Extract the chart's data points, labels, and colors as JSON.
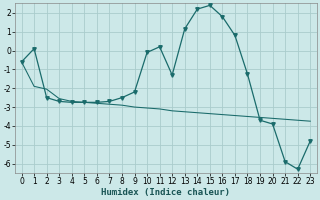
{
  "title": "",
  "xlabel": "Humidex (Indice chaleur)",
  "ylabel": "",
  "bg_color": "#cce8e8",
  "grid_color": "#aacccc",
  "line_color": "#1a6b6b",
  "xlim": [
    -0.5,
    23.5
  ],
  "ylim": [
    -6.5,
    2.5
  ],
  "xticks": [
    0,
    1,
    2,
    3,
    4,
    5,
    6,
    7,
    8,
    9,
    10,
    11,
    12,
    13,
    14,
    15,
    16,
    17,
    18,
    19,
    20,
    21,
    22,
    23
  ],
  "yticks": [
    -6,
    -5,
    -4,
    -3,
    -2,
    -1,
    0,
    1,
    2
  ],
  "series1_x": [
    0,
    1,
    2,
    3,
    4,
    5,
    6,
    7,
    8,
    9,
    10,
    11,
    12,
    13,
    14,
    15,
    16,
    17,
    18,
    19,
    20,
    21,
    22,
    23
  ],
  "series1_y": [
    -0.6,
    0.1,
    -2.5,
    -2.7,
    -2.75,
    -2.75,
    -2.75,
    -2.7,
    -2.5,
    -2.2,
    -0.1,
    0.2,
    -1.3,
    1.15,
    2.2,
    2.4,
    1.8,
    0.8,
    -1.25,
    -3.7,
    -3.9,
    -5.9,
    -6.3,
    -4.8
  ],
  "series2_x": [
    0,
    1,
    2,
    3,
    4,
    5,
    6,
    7,
    8,
    9,
    10,
    11,
    12,
    13,
    14,
    15,
    16,
    17,
    18,
    19,
    20,
    21,
    22,
    23
  ],
  "series2_y": [
    -0.6,
    -1.9,
    -2.05,
    -2.55,
    -2.7,
    -2.75,
    -2.8,
    -2.85,
    -2.9,
    -3.0,
    -3.05,
    -3.1,
    -3.2,
    -3.25,
    -3.3,
    -3.35,
    -3.4,
    -3.45,
    -3.5,
    -3.55,
    -3.6,
    -3.65,
    -3.7,
    -3.75
  ],
  "marker_size": 2.5,
  "line_width": 0.9,
  "tick_fontsize": 5.5,
  "xlabel_fontsize": 6.5
}
